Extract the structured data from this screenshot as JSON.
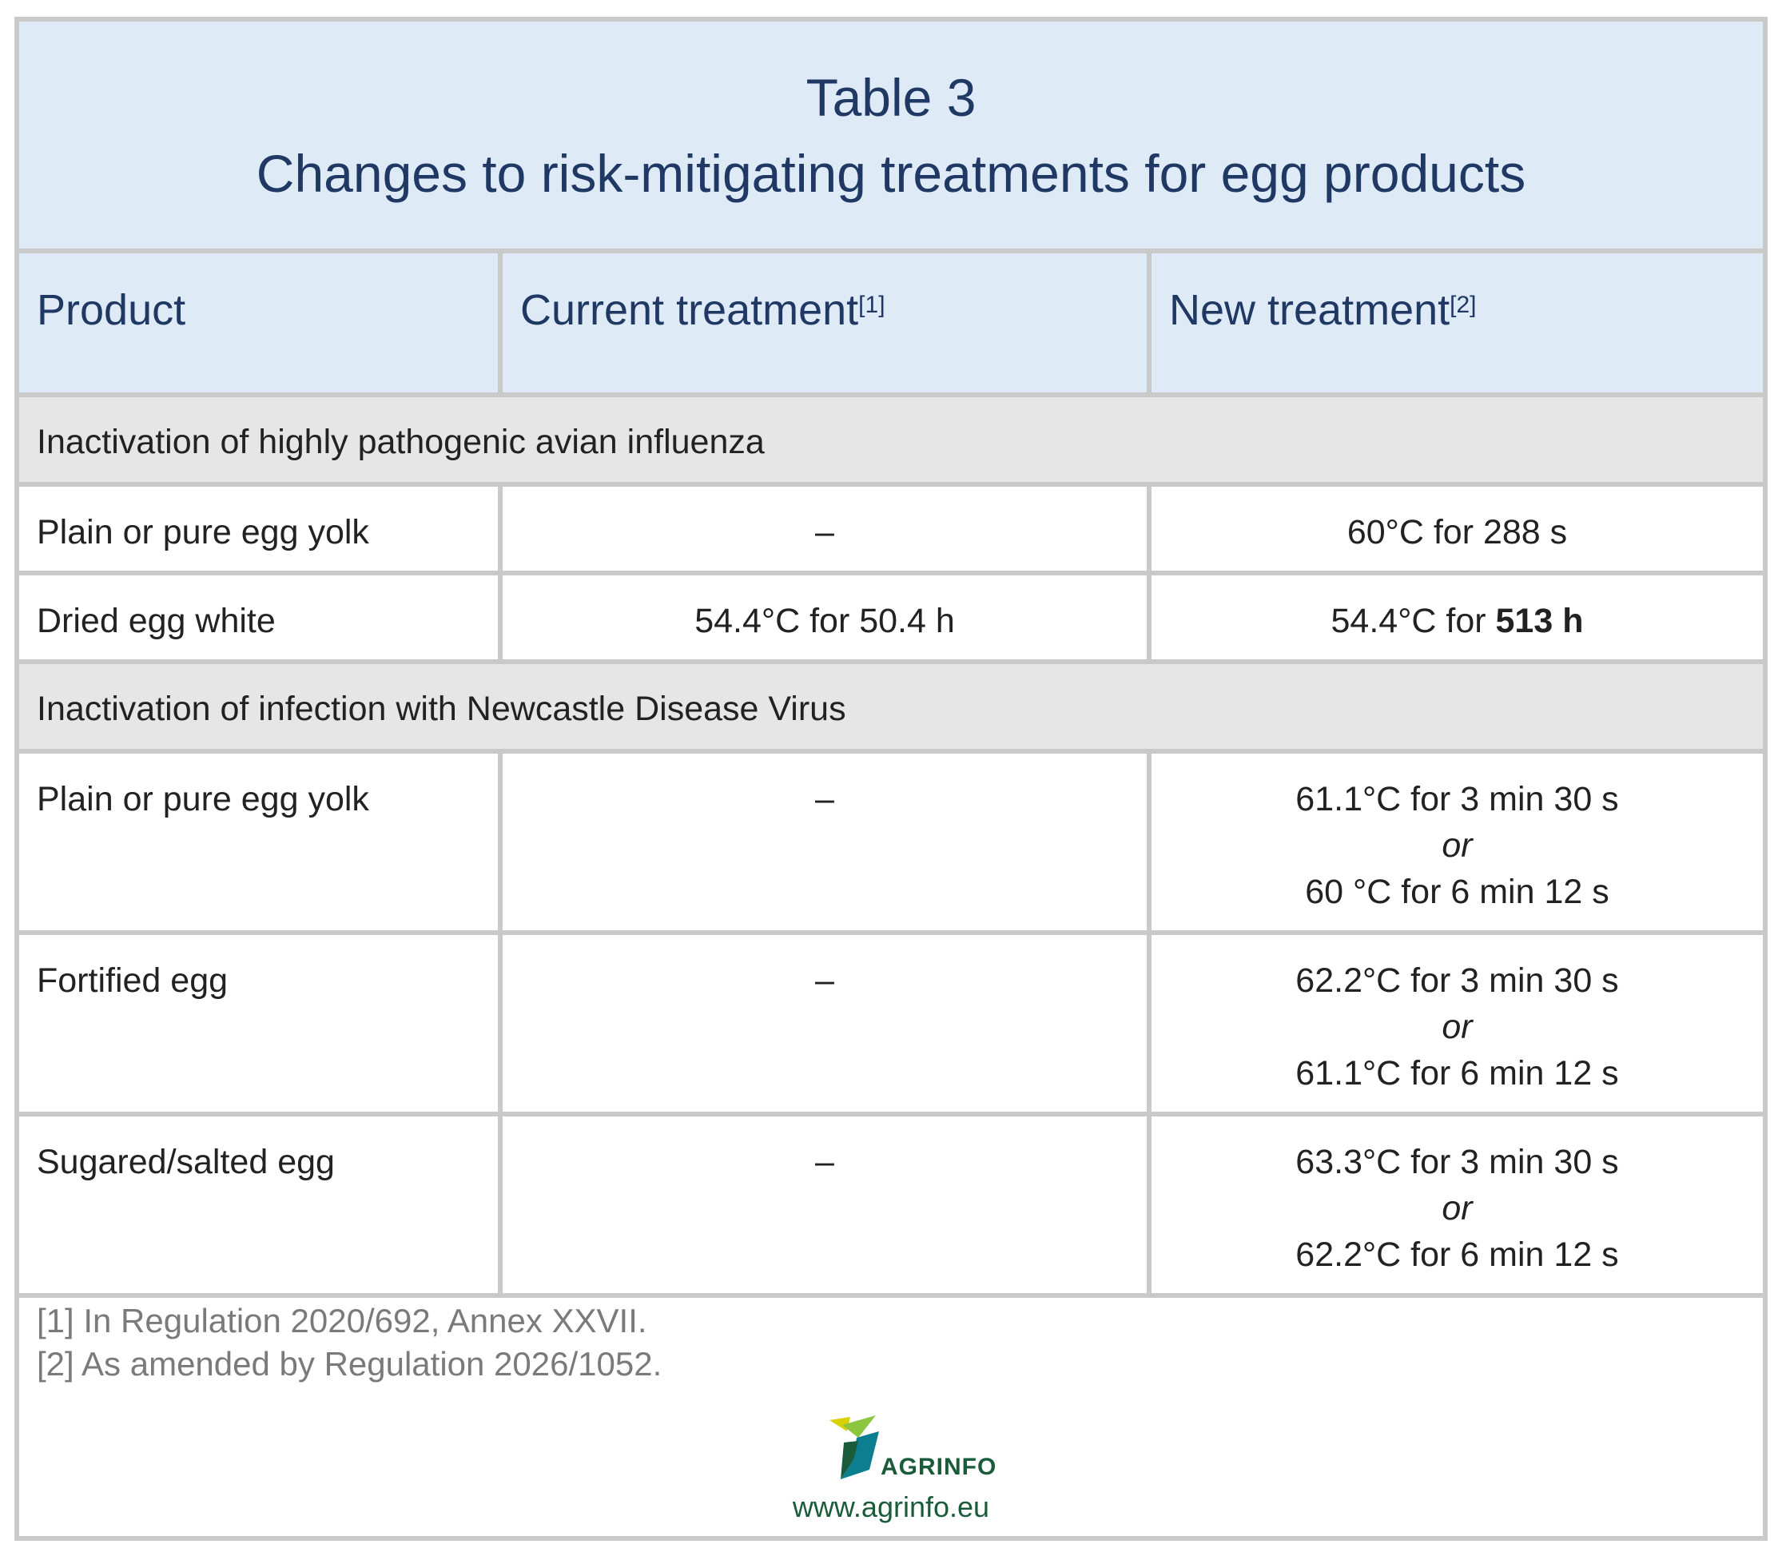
{
  "title": {
    "line1": "Table 3",
    "line2": "Changes to risk-mitigating treatments for egg products"
  },
  "headers": {
    "product": "Product",
    "current": "Current treatment",
    "current_note": "[1]",
    "new": "New treatment",
    "new_note": "[2]"
  },
  "sections": [
    {
      "label": "Inactivation of highly pathogenic avian influenza",
      "rows": [
        {
          "product": "Plain or pure egg yolk",
          "current": "–",
          "new": "60°C for 288 s"
        },
        {
          "product": "Dried egg white",
          "current": "54.4°C for 50.4 h",
          "new_prefix": "54.4°C for ",
          "new_bold": "513 h"
        }
      ]
    },
    {
      "label": "Inactivation of infection with Newcastle Disease Virus",
      "rows": [
        {
          "product": "Plain or pure egg yolk",
          "current": "–",
          "new_a": "61.1°C for 3 min 30 s",
          "new_or": "or",
          "new_b": "60 °C for 6 min 12 s"
        },
        {
          "product": "Fortified egg",
          "current": "–",
          "new_a": "62.2°C for 3 min 30 s",
          "new_or": "or",
          "new_b": "61.1°C for 6 min 12 s"
        },
        {
          "product": "Sugared/salted egg",
          "current": "–",
          "new_a": "63.3°C for 3 min 30 s",
          "new_or": "or",
          "new_b": "62.2°C for 6 min 12 s"
        }
      ]
    }
  ],
  "footnotes": [
    "[1] In Regulation 2020/692, Annex XXVII.",
    "[2] As amended by Regulation 2026/1052."
  ],
  "logo": {
    "name": "AGRINFO",
    "url": "www.agrinfo.eu",
    "colors": {
      "green": "#1a5c3a",
      "yellow": "#d8d000",
      "teal": "#0b7f8f"
    }
  }
}
